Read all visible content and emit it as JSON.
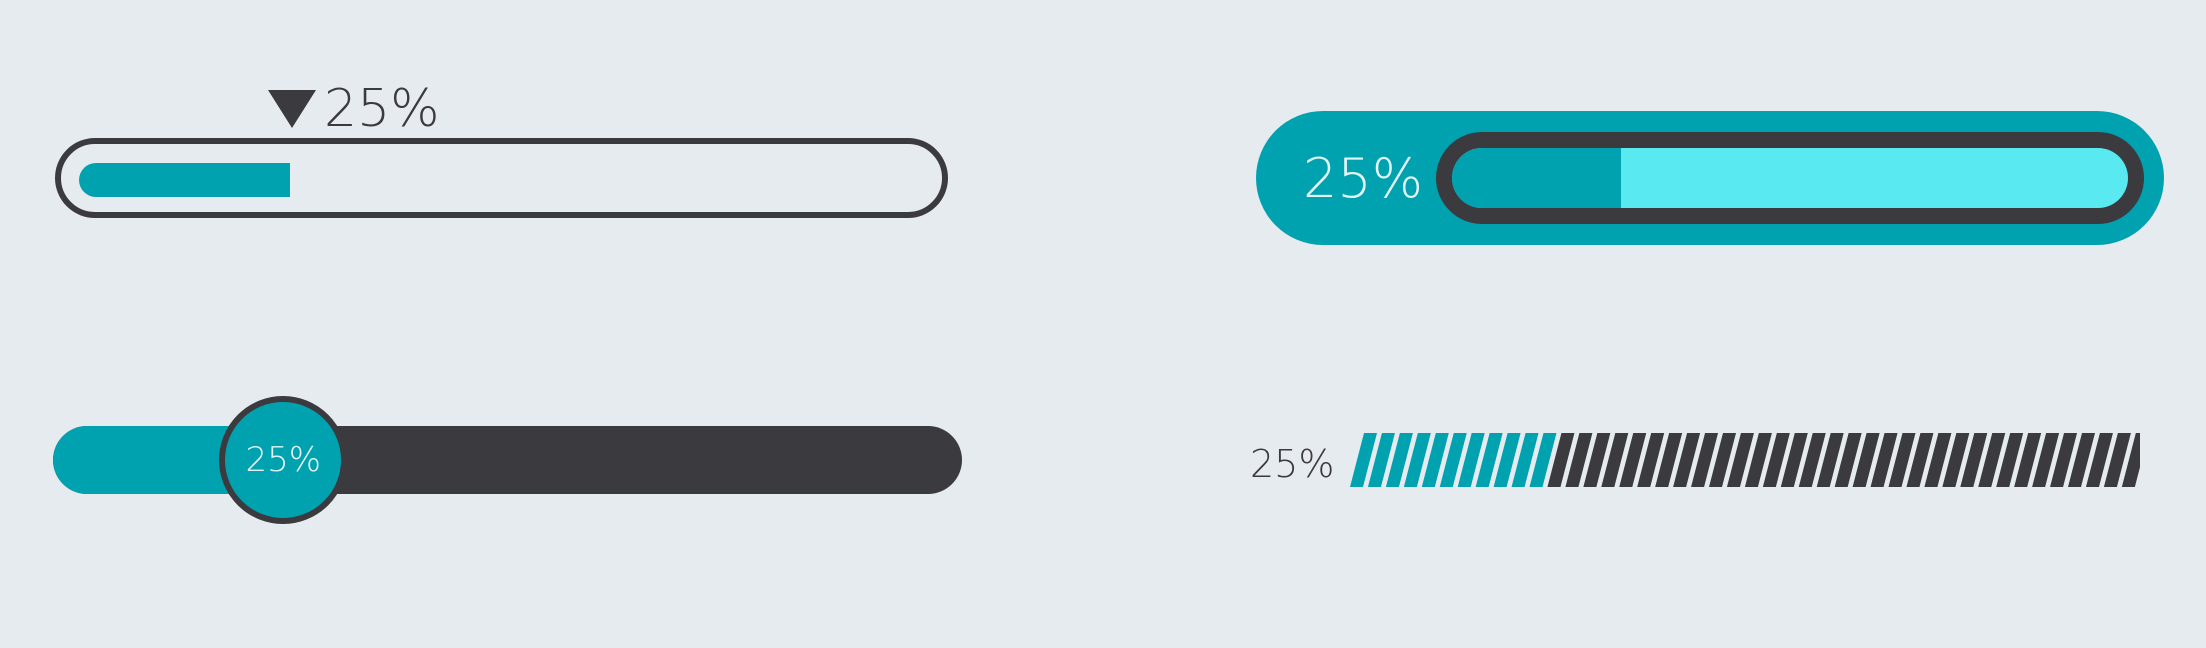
{
  "colors": {
    "background": "#e6ebf0",
    "accent": "#00a2b0",
    "accent_light": "#59e9f1",
    "dark": "#3a3a3f"
  },
  "progress_bars": [
    {
      "style": "outlined-with-pointer",
      "value": 0.25,
      "label": "25%"
    },
    {
      "style": "pill-with-inner-track",
      "value": 0.25,
      "label": "25%"
    },
    {
      "style": "slider-knob",
      "value": 0.25,
      "label": "25%"
    },
    {
      "style": "striped-segments",
      "value": 0.25,
      "label": "25%"
    }
  ]
}
